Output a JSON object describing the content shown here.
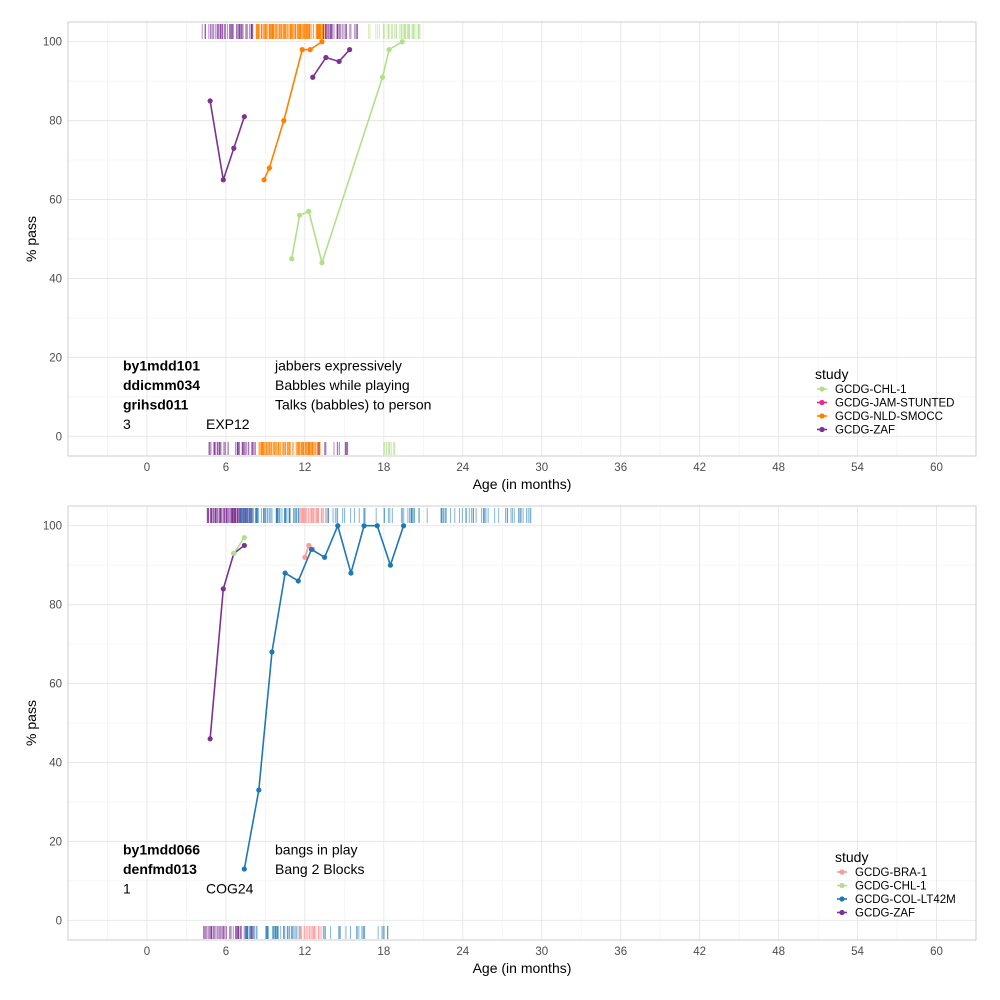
{
  "colors": {
    "GCDG-BRA-1": "#fb9a99",
    "GCDG-CHL-1": "#b2df8a",
    "GCDG-COL-LT42M": "#1f78b4",
    "GCDG-JAM-STUNTED": "#e7298a",
    "GCDG-NLD-SMOCC": "#ff7f00",
    "GCDG-ZAF": "#7b3294"
  },
  "chart_data": [
    {
      "type": "line",
      "title": "",
      "xlabel": "Age (in months)",
      "ylabel": "% pass",
      "xlim": [
        -6,
        63
      ],
      "ylim": [
        -5,
        105
      ],
      "x_ticks": [
        0,
        6,
        12,
        18,
        24,
        30,
        36,
        42,
        48,
        54,
        60
      ],
      "y_ticks": [
        0,
        20,
        40,
        60,
        80,
        100
      ],
      "grid": true,
      "legend_title": "study",
      "legend": [
        "GCDG-CHL-1",
        "GCDG-JAM-STUNTED",
        "GCDG-NLD-SMOCC",
        "GCDG-ZAF"
      ],
      "legend_position": "bottom-right",
      "annotation": {
        "items": [
          {
            "code": "by1mdd101",
            "label": "jabbers expressively"
          },
          {
            "code": "ddicmm034",
            "label": "Babbles while playing"
          },
          {
            "code": "grihsd011",
            "label": "Talks (babbles) to person"
          }
        ],
        "footer_left": "3",
        "footer_right": "EXP12"
      },
      "series": [
        {
          "name": "GCDG-ZAF",
          "x": [
            4.8,
            5.8,
            6.6,
            7.4
          ],
          "y": [
            85,
            65,
            73,
            81
          ]
        },
        {
          "name": "GCDG-NLD-SMOCC",
          "x": [
            8.9,
            9.3,
            10.4,
            11.8,
            12.4,
            13.3
          ],
          "y": [
            65,
            68,
            80,
            98,
            98,
            100
          ]
        },
        {
          "name": "GCDG-ZAF",
          "x": [
            12.6,
            13.6,
            14.6,
            15.4
          ],
          "y": [
            91,
            96,
            95,
            98
          ]
        },
        {
          "name": "GCDG-CHL-1",
          "x": [
            11.0,
            11.6,
            12.3,
            13.3,
            17.9,
            18.4,
            19.4
          ],
          "y": [
            45,
            56,
            57,
            44,
            91,
            98,
            100
          ]
        }
      ],
      "rugs": {
        "top": [
          {
            "study": "GCDG-ZAF",
            "from": 4.2,
            "to": 8.3,
            "density": 1.0
          },
          {
            "study": "GCDG-NLD-SMOCC",
            "from": 8.3,
            "to": 13.6,
            "density": 2.2
          },
          {
            "study": "GCDG-ZAF",
            "from": 13.4,
            "to": 16.0,
            "density": 1.0
          },
          {
            "study": "GCDG-CHL-1",
            "from": 16.5,
            "to": 20.8,
            "density": 0.8
          }
        ],
        "bottom": [
          {
            "study": "GCDG-ZAF",
            "from": 4.7,
            "to": 8.4,
            "density": 0.9
          },
          {
            "study": "GCDG-NLD-SMOCC",
            "from": 8.5,
            "to": 13.2,
            "density": 1.8
          },
          {
            "study": "GCDG-ZAF",
            "from": 13.0,
            "to": 15.6,
            "density": 0.4
          },
          {
            "study": "GCDG-CHL-1",
            "from": 17.6,
            "to": 19.2,
            "density": 0.6
          }
        ]
      }
    },
    {
      "type": "line",
      "title": "",
      "xlabel": "Age (in months)",
      "ylabel": "% pass",
      "xlim": [
        -6,
        63
      ],
      "ylim": [
        -5,
        105
      ],
      "x_ticks": [
        0,
        6,
        12,
        18,
        24,
        30,
        36,
        42,
        48,
        54,
        60
      ],
      "y_ticks": [
        0,
        20,
        40,
        60,
        80,
        100
      ],
      "grid": true,
      "legend_title": "study",
      "legend": [
        "GCDG-BRA-1",
        "GCDG-CHL-1",
        "GCDG-COL-LT42M",
        "GCDG-ZAF"
      ],
      "legend_position": "bottom-right",
      "annotation": {
        "items": [
          {
            "code": "by1mdd066",
            "label": "bangs in play"
          },
          {
            "code": "denfmd013",
            "label": "Bang 2 Blocks"
          }
        ],
        "footer_left": "1",
        "footer_right": "COG24"
      },
      "series": [
        {
          "name": "GCDG-ZAF",
          "x": [
            4.8,
            5.8,
            6.6,
            7.4
          ],
          "y": [
            46,
            84,
            93,
            95
          ]
        },
        {
          "name": "GCDG-CHL-1",
          "x": [
            6.6,
            7.4
          ],
          "y": [
            93,
            97
          ]
        },
        {
          "name": "GCDG-BRA-1",
          "x": [
            12.0,
            12.3,
            12.6
          ],
          "y": [
            92,
            95,
            94
          ]
        },
        {
          "name": "GCDG-COL-LT42M",
          "x": [
            7.4,
            8.5,
            9.5,
            10.5,
            11.5,
            12.5,
            13.5,
            14.5,
            15.5,
            16.5,
            17.5,
            18.5,
            19.5
          ],
          "y": [
            13,
            33,
            68,
            88,
            86,
            94,
            92,
            100,
            88,
            100,
            100,
            90,
            100
          ]
        }
      ],
      "rugs": {
        "top": [
          {
            "study": "GCDG-ZAF",
            "from": 4.5,
            "to": 8.0,
            "density": 2.0
          },
          {
            "study": "GCDG-COL-LT42M",
            "from": 7.0,
            "to": 11.6,
            "density": 1.0
          },
          {
            "study": "GCDG-BRA-1",
            "from": 11.6,
            "to": 13.6,
            "density": 2.0
          },
          {
            "study": "GCDG-COL-LT42M",
            "from": 13.6,
            "to": 29.6,
            "density": 0.35
          }
        ],
        "bottom": [
          {
            "study": "GCDG-ZAF",
            "from": 4.3,
            "to": 8.2,
            "density": 1.0
          },
          {
            "study": "GCDG-COL-LT42M",
            "from": 7.5,
            "to": 11.8,
            "density": 0.8
          },
          {
            "study": "GCDG-BRA-1",
            "from": 11.6,
            "to": 13.3,
            "density": 1.4
          },
          {
            "study": "GCDG-COL-LT42M",
            "from": 13.3,
            "to": 18.5,
            "density": 0.3
          }
        ]
      }
    }
  ]
}
